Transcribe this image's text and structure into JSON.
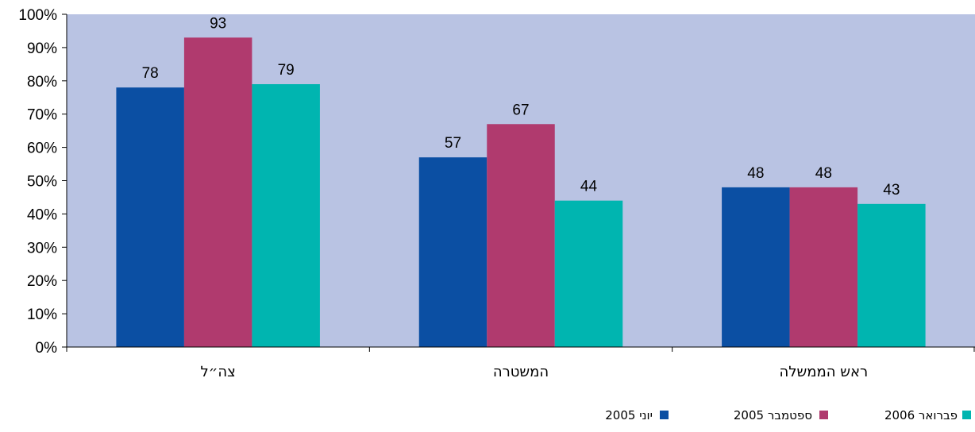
{
  "chart_data": {
    "type": "bar",
    "categories": [
      "צה״ל",
      "המשטרה",
      "ראש הממשלה"
    ],
    "series": [
      {
        "name": "יוני 2005",
        "color": "#0b4fa3",
        "values": [
          78,
          57,
          48
        ]
      },
      {
        "name": "ספטמבר 2005",
        "color": "#b03a6e",
        "values": [
          93,
          67,
          48
        ]
      },
      {
        "name": "פברואר 2006",
        "color": "#00b5b0",
        "values": [
          79,
          44,
          43
        ]
      }
    ],
    "ylim": [
      0,
      100
    ],
    "yticks": [
      0,
      10,
      20,
      30,
      40,
      50,
      60,
      70,
      80,
      90,
      100
    ],
    "ytick_labels": [
      "0%",
      "10%",
      "20%",
      "30%",
      "40%",
      "50%",
      "60%",
      "70%",
      "80%",
      "90%",
      "100%"
    ],
    "plot_background": "#b9c3e3",
    "grid": false,
    "legend_position": "bottom-right",
    "data_labels": true
  }
}
